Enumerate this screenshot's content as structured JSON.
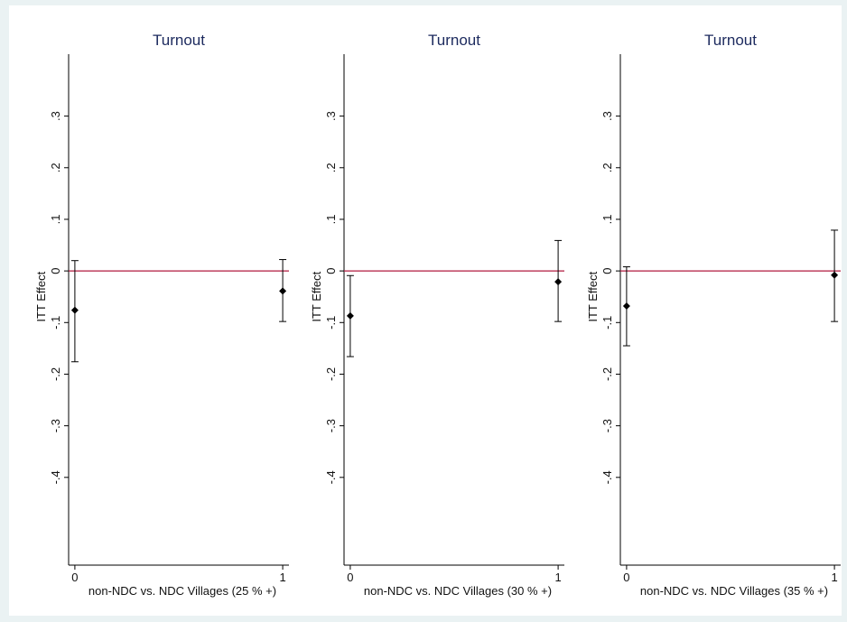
{
  "chart_data": [
    {
      "type": "scatter",
      "title": "Turnout",
      "xlabel": "non-NDC vs. NDC Villages (25 % +)",
      "ylabel": "ITT Effect",
      "x_ticks": [
        0,
        1
      ],
      "x_tick_labels": [
        "0",
        "1"
      ],
      "y_ticks": [
        0.3,
        0.2,
        0.1,
        0,
        -0.1,
        -0.2,
        -0.3,
        -0.4
      ],
      "y_tick_labels": [
        ".3",
        ".2",
        ".1",
        "0",
        "-.1",
        "-.2",
        "-.3",
        "-.4"
      ],
      "ylim": [
        -0.57,
        0.42
      ],
      "xlim": [
        -0.03,
        1.03
      ],
      "reference_line": {
        "y": 0,
        "color": "#b0183f"
      },
      "points": [
        {
          "x": 0,
          "y": -0.076,
          "lower": -0.176,
          "upper": 0.02
        },
        {
          "x": 1,
          "y": -0.039,
          "lower": -0.098,
          "upper": 0.022
        }
      ],
      "grid": false
    },
    {
      "type": "scatter",
      "title": "Turnout",
      "xlabel": "non-NDC vs. NDC Villages (30 % +)",
      "ylabel": "ITT Effect",
      "x_ticks": [
        0,
        1
      ],
      "x_tick_labels": [
        "0",
        "1"
      ],
      "y_ticks": [
        0.3,
        0.2,
        0.1,
        0,
        -0.1,
        -0.2,
        -0.3,
        -0.4
      ],
      "y_tick_labels": [
        ".3",
        ".2",
        ".1",
        "0",
        "-.1",
        "-.2",
        "-.3",
        "-.4"
      ],
      "ylim": [
        -0.57,
        0.42
      ],
      "xlim": [
        -0.03,
        1.03
      ],
      "reference_line": {
        "y": 0,
        "color": "#b0183f"
      },
      "points": [
        {
          "x": 0,
          "y": -0.087,
          "lower": -0.166,
          "upper": -0.009
        },
        {
          "x": 1,
          "y": -0.021,
          "lower": -0.098,
          "upper": 0.059
        }
      ],
      "grid": false
    },
    {
      "type": "scatter",
      "title": "Turnout",
      "xlabel": "non-NDC vs. NDC Villages (35 % +)",
      "ylabel": "ITT Effect",
      "x_ticks": [
        0,
        1
      ],
      "x_tick_labels": [
        "0",
        "1"
      ],
      "y_ticks": [
        0.3,
        0.2,
        0.1,
        0,
        -0.1,
        -0.2,
        -0.3,
        -0.4
      ],
      "y_tick_labels": [
        ".3",
        ".2",
        ".1",
        "0",
        "-.1",
        "-.2",
        "-.3",
        "-.4"
      ],
      "ylim": [
        -0.57,
        0.42
      ],
      "xlim": [
        -0.03,
        1.03
      ],
      "reference_line": {
        "y": 0,
        "color": "#b0183f"
      },
      "points": [
        {
          "x": 0,
          "y": -0.068,
          "lower": -0.145,
          "upper": 0.008
        },
        {
          "x": 1,
          "y": -0.008,
          "lower": -0.098,
          "upper": 0.079
        }
      ],
      "grid": false
    }
  ]
}
